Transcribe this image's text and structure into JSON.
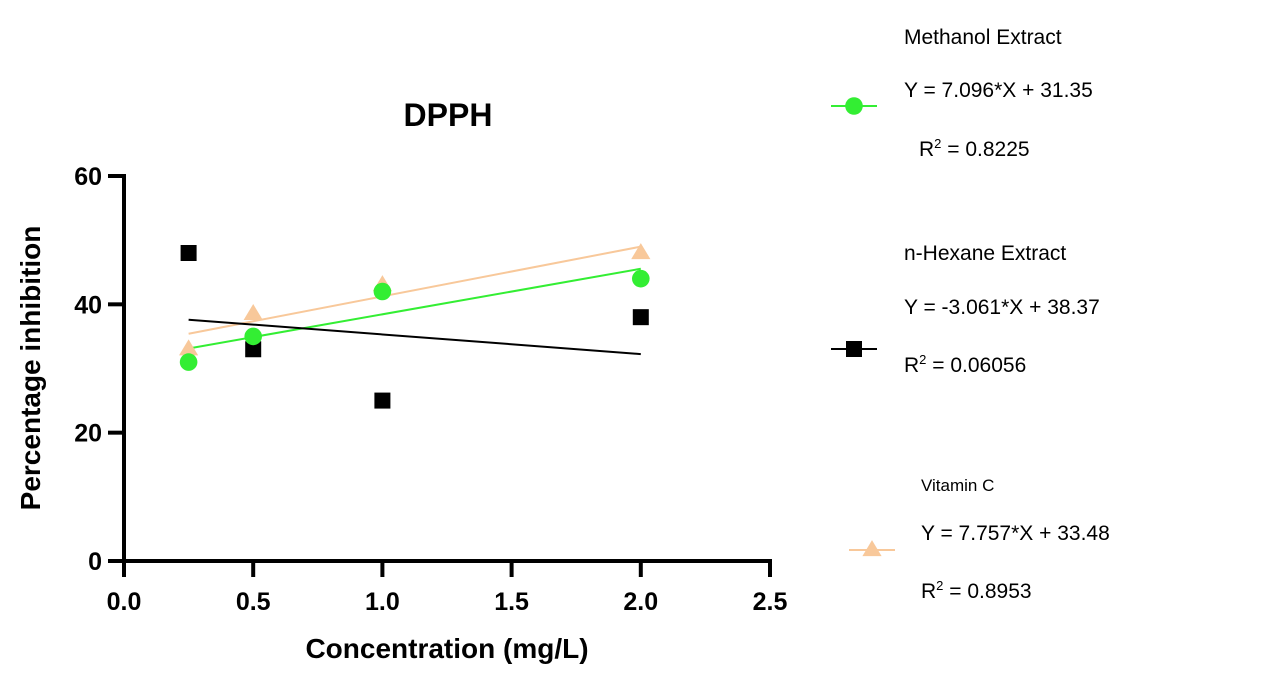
{
  "chart_data": {
    "type": "scatter",
    "title": "DPPH",
    "xlabel": "Concentration (mg/L)",
    "ylabel": "Percentage inhibition",
    "xlim": [
      0,
      2.5
    ],
    "ylim": [
      0,
      60
    ],
    "xticks": [
      "0.0",
      "0.5",
      "1.0",
      "1.5",
      "2.0",
      "2.5"
    ],
    "xtick_values": [
      0,
      0.5,
      1.0,
      1.5,
      2.0,
      2.5
    ],
    "yticks": [
      "0",
      "20",
      "40",
      "60"
    ],
    "ytick_values": [
      0,
      20,
      40,
      60
    ],
    "grid": false,
    "legend_placement": "right",
    "series": [
      {
        "name": "Methanol Extract",
        "marker": "circle",
        "color": "#33ee33",
        "x": [
          0.25,
          0.5,
          1.0,
          2.0
        ],
        "y": [
          31,
          35,
          42,
          44
        ],
        "fit": {
          "slope": 7.096,
          "intercept": 31.35
        },
        "equation": "Y = 7.096*X + 31.35",
        "r2_label": "R",
        "r2_value": " = 0.8225"
      },
      {
        "name": "n-Hexane Extract",
        "marker": "square",
        "color": "#000000",
        "x": [
          0.25,
          0.5,
          1.0,
          2.0
        ],
        "y": [
          48,
          33,
          25,
          38
        ],
        "fit": {
          "slope": -3.061,
          "intercept": 38.37
        },
        "equation": "Y = -3.061*X + 38.37",
        "r2_label": "R",
        "r2_value": " = 0.06056"
      },
      {
        "name": "Vitamin C",
        "marker": "triangle",
        "color": "#f8c89a",
        "x": [
          0.25,
          0.5,
          1.0,
          2.0
        ],
        "y": [
          33,
          38.5,
          43,
          48
        ],
        "fit": {
          "slope": 7.757,
          "intercept": 33.48
        },
        "equation": "Y = 7.757*X + 33.48",
        "r2_label": "R",
        "r2_value": " = 0.8953"
      }
    ]
  }
}
